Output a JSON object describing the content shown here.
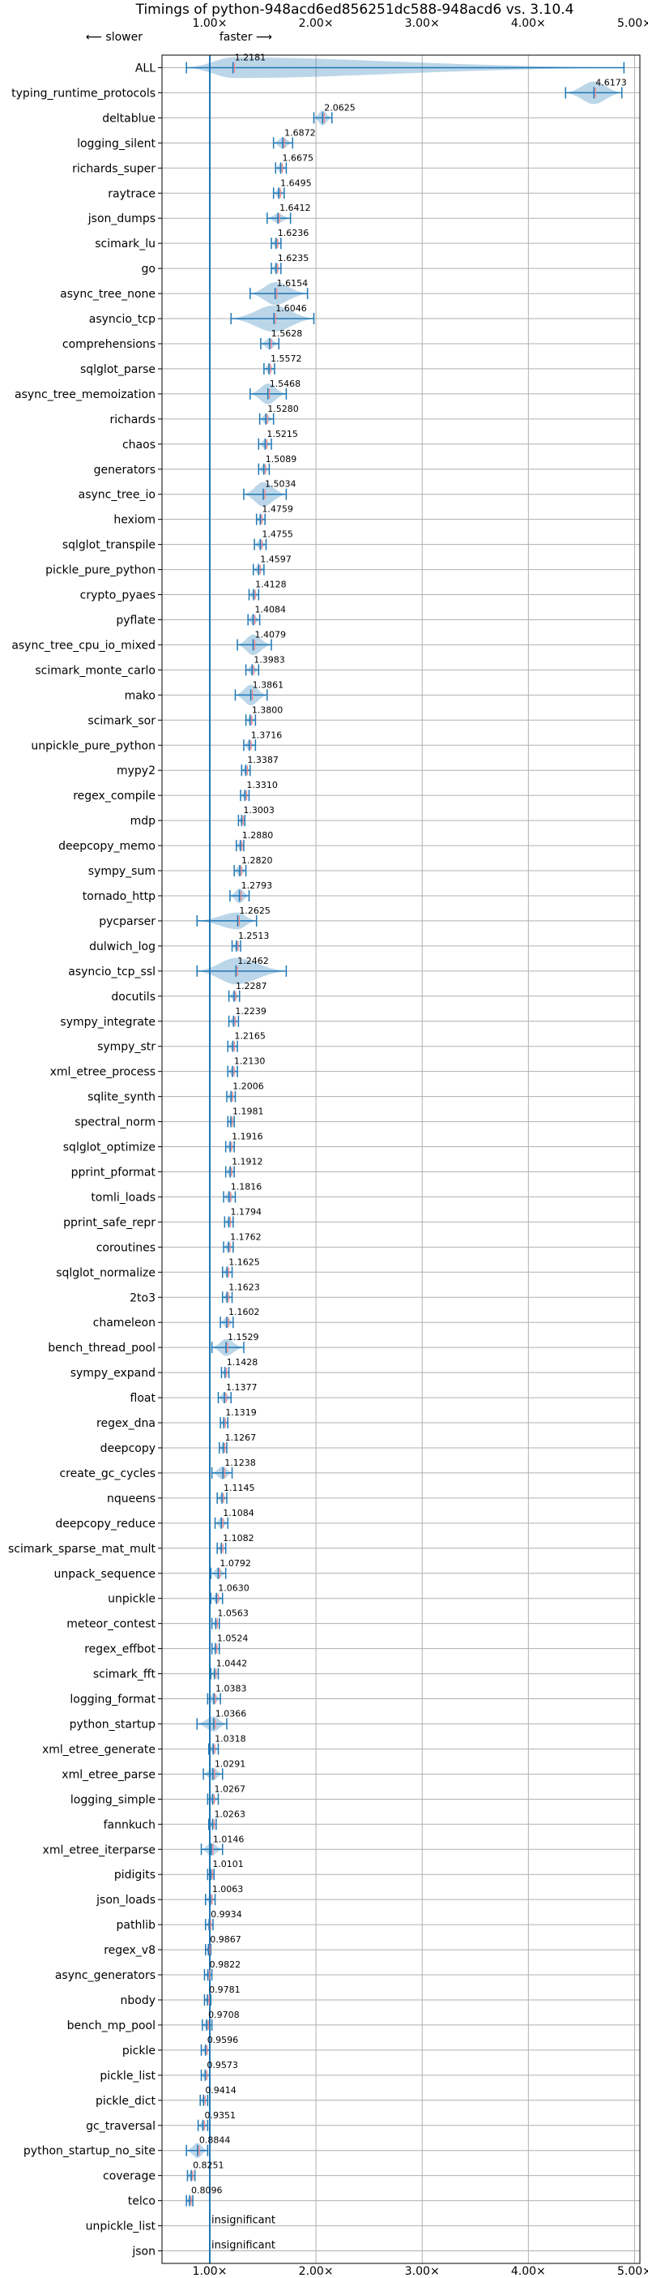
{
  "chart_data": {
    "type": "violin",
    "title": "Timings of python-948acd6ed856251dc588-948acd6 vs. 3.10.4",
    "direction_hint": {
      "slower": "⟵ slower",
      "faster": "faster ⟶"
    },
    "xlim": [
      0.55,
      5.05
    ],
    "xticks": [
      1,
      2,
      3,
      4,
      5
    ],
    "xtick_labels": [
      "1.00×",
      "2.00×",
      "3.00×",
      "4.00×",
      "5.00×"
    ],
    "grid": true,
    "colors": {
      "violin": "#1f77b4",
      "median": "#ff7f7f",
      "grid": "#b0b0b0"
    },
    "insignificant_label": "insignificant",
    "rows": [
      {
        "name": "ALL",
        "value": 1.2181,
        "lo": 0.78,
        "hi": 4.9,
        "w": 0.55
      },
      {
        "name": "typing_runtime_protocols",
        "value": 4.6173,
        "lo": 4.35,
        "hi": 4.88,
        "w": 0.6
      },
      {
        "name": "deltablue",
        "value": 2.0625,
        "lo": 1.98,
        "hi": 2.15,
        "w": 0.4
      },
      {
        "name": "logging_silent",
        "value": 1.6872,
        "lo": 1.6,
        "hi": 1.78,
        "w": 0.3
      },
      {
        "name": "richards_super",
        "value": 1.6675,
        "lo": 1.62,
        "hi": 1.72,
        "w": 0.25
      },
      {
        "name": "raytrace",
        "value": 1.6495,
        "lo": 1.6,
        "hi": 1.7,
        "w": 0.25
      },
      {
        "name": "json_dumps",
        "value": 1.6412,
        "lo": 1.54,
        "hi": 1.76,
        "w": 0.25
      },
      {
        "name": "scimark_lu",
        "value": 1.6236,
        "lo": 1.58,
        "hi": 1.67,
        "w": 0.25
      },
      {
        "name": "go",
        "value": 1.6235,
        "lo": 1.58,
        "hi": 1.67,
        "w": 0.25
      },
      {
        "name": "async_tree_none",
        "value": 1.6154,
        "lo": 1.38,
        "hi": 1.92,
        "w": 0.6
      },
      {
        "name": "asyncio_tcp",
        "value": 1.6046,
        "lo": 1.2,
        "hi": 1.98,
        "w": 0.7
      },
      {
        "name": "comprehensions",
        "value": 1.5628,
        "lo": 1.48,
        "hi": 1.65,
        "w": 0.3
      },
      {
        "name": "sqlglot_parse",
        "value": 1.5572,
        "lo": 1.51,
        "hi": 1.61,
        "w": 0.25
      },
      {
        "name": "async_tree_memoization",
        "value": 1.5468,
        "lo": 1.38,
        "hi": 1.72,
        "w": 0.55
      },
      {
        "name": "richards",
        "value": 1.528,
        "lo": 1.47,
        "hi": 1.6,
        "w": 0.25
      },
      {
        "name": "chaos",
        "value": 1.5215,
        "lo": 1.46,
        "hi": 1.58,
        "w": 0.25
      },
      {
        "name": "generators",
        "value": 1.5089,
        "lo": 1.46,
        "hi": 1.56,
        "w": 0.25
      },
      {
        "name": "async_tree_io",
        "value": 1.5034,
        "lo": 1.32,
        "hi": 1.72,
        "w": 0.65
      },
      {
        "name": "hexiom",
        "value": 1.4759,
        "lo": 1.44,
        "hi": 1.52,
        "w": 0.25
      },
      {
        "name": "sqlglot_transpile",
        "value": 1.4755,
        "lo": 1.42,
        "hi": 1.53,
        "w": 0.25
      },
      {
        "name": "pickle_pure_python",
        "value": 1.4597,
        "lo": 1.41,
        "hi": 1.51,
        "w": 0.25
      },
      {
        "name": "crypto_pyaes",
        "value": 1.4128,
        "lo": 1.37,
        "hi": 1.46,
        "w": 0.25
      },
      {
        "name": "pyflate",
        "value": 1.4084,
        "lo": 1.36,
        "hi": 1.47,
        "w": 0.3
      },
      {
        "name": "async_tree_cpu_io_mixed",
        "value": 1.4079,
        "lo": 1.26,
        "hi": 1.58,
        "w": 0.55
      },
      {
        "name": "scimark_monte_carlo",
        "value": 1.3983,
        "lo": 1.34,
        "hi": 1.46,
        "w": 0.25
      },
      {
        "name": "mako",
        "value": 1.3861,
        "lo": 1.24,
        "hi": 1.54,
        "w": 0.55
      },
      {
        "name": "scimark_sor",
        "value": 1.38,
        "lo": 1.34,
        "hi": 1.43,
        "w": 0.25
      },
      {
        "name": "unpickle_pure_python",
        "value": 1.3716,
        "lo": 1.32,
        "hi": 1.43,
        "w": 0.25
      },
      {
        "name": "mypy2",
        "value": 1.3387,
        "lo": 1.3,
        "hi": 1.38,
        "w": 0.25
      },
      {
        "name": "regex_compile",
        "value": 1.331,
        "lo": 1.29,
        "hi": 1.37,
        "w": 0.25
      },
      {
        "name": "mdp",
        "value": 1.3003,
        "lo": 1.27,
        "hi": 1.33,
        "w": 0.2
      },
      {
        "name": "deepcopy_memo",
        "value": 1.288,
        "lo": 1.25,
        "hi": 1.32,
        "w": 0.25
      },
      {
        "name": "sympy_sum",
        "value": 1.282,
        "lo": 1.23,
        "hi": 1.34,
        "w": 0.3
      },
      {
        "name": "tornado_http",
        "value": 1.2793,
        "lo": 1.19,
        "hi": 1.37,
        "w": 0.4
      },
      {
        "name": "pycparser",
        "value": 1.2625,
        "lo": 0.88,
        "hi": 1.44,
        "w": 0.45
      },
      {
        "name": "dulwich_log",
        "value": 1.2513,
        "lo": 1.21,
        "hi": 1.29,
        "w": 0.25
      },
      {
        "name": "asyncio_tcp_ssl",
        "value": 1.2462,
        "lo": 0.88,
        "hi": 1.72,
        "w": 0.7
      },
      {
        "name": "docutils",
        "value": 1.2287,
        "lo": 1.18,
        "hi": 1.28,
        "w": 0.25
      },
      {
        "name": "sympy_integrate",
        "value": 1.2239,
        "lo": 1.18,
        "hi": 1.27,
        "w": 0.25
      },
      {
        "name": "sympy_str",
        "value": 1.2165,
        "lo": 1.17,
        "hi": 1.26,
        "w": 0.25
      },
      {
        "name": "xml_etree_process",
        "value": 1.213,
        "lo": 1.17,
        "hi": 1.26,
        "w": 0.25
      },
      {
        "name": "sqlite_synth",
        "value": 1.2006,
        "lo": 1.16,
        "hi": 1.24,
        "w": 0.25
      },
      {
        "name": "spectral_norm",
        "value": 1.1981,
        "lo": 1.17,
        "hi": 1.23,
        "w": 0.2
      },
      {
        "name": "sqlglot_optimize",
        "value": 1.1916,
        "lo": 1.15,
        "hi": 1.23,
        "w": 0.25
      },
      {
        "name": "pprint_pformat",
        "value": 1.1912,
        "lo": 1.15,
        "hi": 1.23,
        "w": 0.25
      },
      {
        "name": "tomli_loads",
        "value": 1.1816,
        "lo": 1.13,
        "hi": 1.24,
        "w": 0.3
      },
      {
        "name": "pprint_safe_repr",
        "value": 1.1794,
        "lo": 1.14,
        "hi": 1.22,
        "w": 0.25
      },
      {
        "name": "coroutines",
        "value": 1.1762,
        "lo": 1.13,
        "hi": 1.22,
        "w": 0.25
      },
      {
        "name": "sqlglot_normalize",
        "value": 1.1625,
        "lo": 1.12,
        "hi": 1.21,
        "w": 0.25
      },
      {
        "name": "2to3",
        "value": 1.1623,
        "lo": 1.12,
        "hi": 1.21,
        "w": 0.25
      },
      {
        "name": "chameleon",
        "value": 1.1602,
        "lo": 1.1,
        "hi": 1.22,
        "w": 0.3
      },
      {
        "name": "bench_thread_pool",
        "value": 1.1529,
        "lo": 1.02,
        "hi": 1.32,
        "w": 0.45
      },
      {
        "name": "sympy_expand",
        "value": 1.1428,
        "lo": 1.11,
        "hi": 1.18,
        "w": 0.2
      },
      {
        "name": "float",
        "value": 1.1377,
        "lo": 1.08,
        "hi": 1.2,
        "w": 0.3
      },
      {
        "name": "regex_dna",
        "value": 1.1319,
        "lo": 1.1,
        "hi": 1.17,
        "w": 0.2
      },
      {
        "name": "deepcopy",
        "value": 1.1267,
        "lo": 1.09,
        "hi": 1.16,
        "w": 0.25
      },
      {
        "name": "create_gc_cycles",
        "value": 1.1238,
        "lo": 1.02,
        "hi": 1.21,
        "w": 0.35
      },
      {
        "name": "nqueens",
        "value": 1.1145,
        "lo": 1.07,
        "hi": 1.16,
        "w": 0.25
      },
      {
        "name": "deepcopy_reduce",
        "value": 1.1084,
        "lo": 1.05,
        "hi": 1.17,
        "w": 0.3
      },
      {
        "name": "scimark_sparse_mat_mult",
        "value": 1.1082,
        "lo": 1.07,
        "hi": 1.15,
        "w": 0.2
      },
      {
        "name": "unpack_sequence",
        "value": 1.0792,
        "lo": 1.01,
        "hi": 1.15,
        "w": 0.3
      },
      {
        "name": "unpickle",
        "value": 1.063,
        "lo": 1.01,
        "hi": 1.12,
        "w": 0.25
      },
      {
        "name": "meteor_contest",
        "value": 1.0563,
        "lo": 1.02,
        "hi": 1.09,
        "w": 0.2
      },
      {
        "name": "regex_effbot",
        "value": 1.0524,
        "lo": 1.02,
        "hi": 1.09,
        "w": 0.2
      },
      {
        "name": "scimark_fft",
        "value": 1.0442,
        "lo": 1.01,
        "hi": 1.08,
        "w": 0.2
      },
      {
        "name": "logging_format",
        "value": 1.0383,
        "lo": 0.98,
        "hi": 1.1,
        "w": 0.3
      },
      {
        "name": "python_startup",
        "value": 1.0366,
        "lo": 0.88,
        "hi": 1.16,
        "w": 0.4
      },
      {
        "name": "xml_etree_generate",
        "value": 1.0318,
        "lo": 0.99,
        "hi": 1.08,
        "w": 0.25
      },
      {
        "name": "xml_etree_parse",
        "value": 1.0291,
        "lo": 0.94,
        "hi": 1.12,
        "w": 0.35
      },
      {
        "name": "logging_simple",
        "value": 1.0267,
        "lo": 0.98,
        "hi": 1.08,
        "w": 0.25
      },
      {
        "name": "fannkuch",
        "value": 1.0263,
        "lo": 0.99,
        "hi": 1.06,
        "w": 0.2
      },
      {
        "name": "xml_etree_iterparse",
        "value": 1.0146,
        "lo": 0.92,
        "hi": 1.12,
        "w": 0.35
      },
      {
        "name": "pidigits",
        "value": 1.0101,
        "lo": 0.98,
        "hi": 1.04,
        "w": 0.2
      },
      {
        "name": "json_loads",
        "value": 1.0063,
        "lo": 0.96,
        "hi": 1.05,
        "w": 0.25
      },
      {
        "name": "pathlib",
        "value": 0.9934,
        "lo": 0.96,
        "hi": 1.03,
        "w": 0.2
      },
      {
        "name": "regex_v8",
        "value": 0.9867,
        "lo": 0.96,
        "hi": 1.01,
        "w": 0.2
      },
      {
        "name": "async_generators",
        "value": 0.9822,
        "lo": 0.95,
        "hi": 1.02,
        "w": 0.2
      },
      {
        "name": "nbody",
        "value": 0.9781,
        "lo": 0.95,
        "hi": 1.01,
        "w": 0.2
      },
      {
        "name": "bench_mp_pool",
        "value": 0.9708,
        "lo": 0.93,
        "hi": 1.02,
        "w": 0.25
      },
      {
        "name": "pickle",
        "value": 0.9596,
        "lo": 0.92,
        "hi": 1.0,
        "w": 0.25
      },
      {
        "name": "pickle_list",
        "value": 0.9573,
        "lo": 0.92,
        "hi": 1.0,
        "w": 0.25
      },
      {
        "name": "pickle_dict",
        "value": 0.9414,
        "lo": 0.91,
        "hi": 0.98,
        "w": 0.2
      },
      {
        "name": "gc_traversal",
        "value": 0.9351,
        "lo": 0.89,
        "hi": 0.98,
        "w": 0.25
      },
      {
        "name": "python_startup_no_site",
        "value": 0.8844,
        "lo": 0.78,
        "hi": 0.98,
        "w": 0.4
      },
      {
        "name": "coverage",
        "value": 0.8251,
        "lo": 0.79,
        "hi": 0.86,
        "w": 0.25
      },
      {
        "name": "telco",
        "value": 0.8096,
        "lo": 0.78,
        "hi": 0.84,
        "w": 0.25
      },
      {
        "name": "unpickle_list",
        "insignificant": true
      },
      {
        "name": "json",
        "insignificant": true
      }
    ]
  }
}
